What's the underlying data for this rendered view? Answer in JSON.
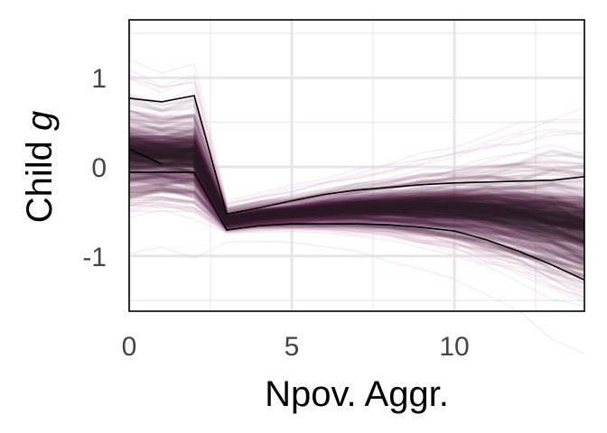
{
  "chart_data": {
    "type": "line",
    "xlabel": "Npov. Aggr.",
    "ylabel_main": "Child ",
    "ylabel_italic": "g",
    "xlim": [
      0,
      14
    ],
    "ylim": [
      -1.62,
      1.65
    ],
    "x_ticks": [
      0,
      5,
      10
    ],
    "x_tick_labels": [
      "0",
      "5",
      "10"
    ],
    "y_ticks": [
      1,
      0,
      -1
    ],
    "y_tick_labels": [
      "1",
      "0",
      "-1"
    ],
    "grid": true,
    "colors": {
      "bundle_dark": "#2a1c25",
      "bundle_mid": "#4f2545",
      "bundle_outer": "#8a5a7c",
      "haze": "#e6c6d6",
      "envelope": "#000000",
      "frame": "#000000"
    },
    "bundle_mean": {
      "x": [
        0,
        1,
        2,
        3,
        4,
        5,
        6,
        7,
        8,
        9,
        10,
        11,
        12,
        13,
        14
      ],
      "y": [
        0.15,
        0.12,
        0.12,
        -0.6,
        -0.55,
        -0.52,
        -0.49,
        -0.47,
        -0.46,
        -0.46,
        -0.47,
        -0.5,
        -0.54,
        -0.6,
        -0.68
      ]
    },
    "bundle_spread": [
      0.28,
      0.25,
      0.28,
      0.06,
      0.07,
      0.08,
      0.1,
      0.12,
      0.14,
      0.17,
      0.2,
      0.24,
      0.28,
      0.32,
      0.36
    ],
    "envelope_upper": {
      "x": [
        0,
        1,
        2,
        3,
        4,
        5,
        6,
        7,
        8,
        9,
        10,
        11,
        12,
        13,
        14
      ],
      "y": [
        0.77,
        0.73,
        0.8,
        -0.53,
        -0.46,
        -0.38,
        -0.31,
        -0.26,
        -0.23,
        -0.2,
        -0.18,
        -0.17,
        -0.16,
        -0.15,
        -0.11
      ]
    },
    "envelope_lower": {
      "x": [
        0,
        1,
        2,
        3,
        4,
        5,
        6,
        7,
        8,
        9,
        10,
        11,
        12,
        13,
        14
      ],
      "y": [
        -0.06,
        -0.06,
        -0.06,
        -0.71,
        -0.66,
        -0.64,
        -0.64,
        -0.64,
        -0.65,
        -0.68,
        -0.72,
        -0.82,
        -0.95,
        -1.1,
        -1.27
      ]
    },
    "highlight_line": {
      "x": [
        0,
        1
      ],
      "y": [
        0.2,
        0.03
      ]
    }
  }
}
